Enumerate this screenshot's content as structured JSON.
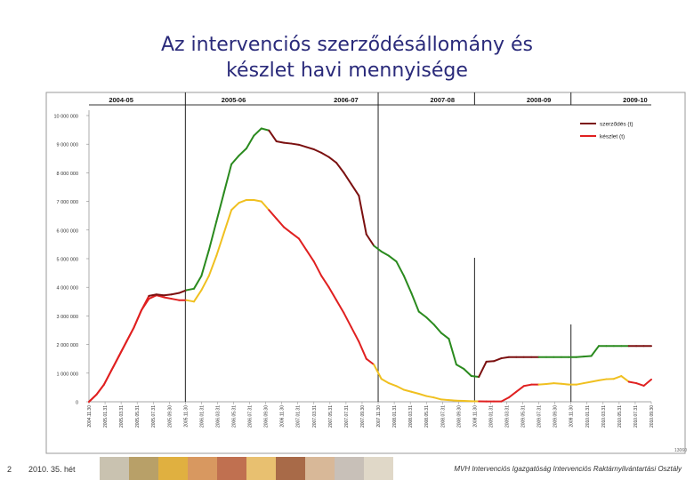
{
  "slide": {
    "title_line1": "Az intervenciós szerződésállomány és",
    "title_line2": "készlet havi mennyisége",
    "page_number": "2",
    "date_label": "2010. 35. hét",
    "organization": "MVH Intervenciós Igazgatóság Intervenciós Raktárnyilvántartási Osztály",
    "corner_mark": "13060"
  },
  "colors": {
    "contract_dark": "#7b1010",
    "contract_green": "#2a8a1e",
    "stock_red": "#e02020",
    "stock_yellow": "#f0c020",
    "title": "#2a2a7a"
  },
  "photo_strip_colors": [
    "#c9c2b0",
    "#b8a068",
    "#e0b040",
    "#d89860",
    "#c07050",
    "#e8c070",
    "#a86a48",
    "#d8b898",
    "#c8c0b8",
    "#e0d8c8"
  ],
  "chart_data": {
    "type": "line",
    "title": "",
    "xlabel": "",
    "ylabel": "",
    "ylim": [
      0,
      10000000
    ],
    "y_ticks": [
      0,
      1000000,
      2000000,
      3000000,
      4000000,
      5000000,
      6000000,
      7000000,
      8000000,
      9000000,
      10000000
    ],
    "y_tick_labels": [
      "0",
      "1 000 000",
      "2 000 000",
      "3 000 000",
      "4 000 000",
      "5 000 000",
      "6 000 000",
      "7 000 000",
      "8 000 000",
      "9 000 000",
      "10 000 000"
    ],
    "x_tick_labels": [
      "2004.11.30",
      "2005.01.31",
      "2005.03.31",
      "2005.05.31",
      "2005.07.31",
      "2005.09.30",
      "2005.11.30",
      "2006.01.31",
      "2006.03.31",
      "2006.05.31",
      "2006.07.31",
      "2006.09.30",
      "2006.11.30",
      "2007.01.31",
      "2007.03.31",
      "2007.05.31",
      "2007.07.31",
      "2007.09.30",
      "2007.11.30",
      "2008.01.31",
      "2008.03.31",
      "2008.05.31",
      "2008.07.31",
      "2008.09.30",
      "2008.11.30",
      "2009.01.31",
      "2009.03.31",
      "2009.05.31",
      "2009.07.31",
      "2009.09.30",
      "2009.11.30",
      "2010.01.31",
      "2010.03.31",
      "2010.05.31",
      "2010.07.31",
      "2010.09.30"
    ],
    "period_labels": [
      {
        "label": "2004-05",
        "month": 2
      },
      {
        "label": "2005-06",
        "month": 9
      },
      {
        "label": "2006-07",
        "month": 16
      },
      {
        "label": "2007-08",
        "month": 22
      },
      {
        "label": "2008-09",
        "month": 28
      },
      {
        "label": "2009-10",
        "month": 34
      }
    ],
    "period_dividers": [
      6,
      18,
      24,
      30
    ],
    "legend": [
      {
        "name": "szerződés (t)",
        "color": "#7b1010"
      },
      {
        "name": "készlet (t)",
        "color": "#e02020"
      }
    ],
    "legend_position": "top-right",
    "series": [
      {
        "name": "szerződés (t)",
        "values": [
          0,
          250000,
          600000,
          1100000,
          1600000,
          2100000,
          2600000,
          3200000,
          3700000,
          3750000,
          3720000,
          3750000,
          3800000,
          3900000,
          3950000,
          4400000,
          5300000,
          6300000,
          7300000,
          8300000,
          8600000,
          8850000,
          9300000,
          9550000,
          9480000,
          9100000,
          9050000,
          9020000,
          8980000,
          8900000,
          8820000,
          8700000,
          8550000,
          8350000,
          8000000,
          7600000,
          7200000,
          5850000,
          5450000,
          5250000,
          5100000,
          4900000,
          4400000,
          3800000,
          3150000,
          2950000,
          2700000,
          2400000,
          2200000,
          1300000,
          1150000,
          900000,
          870000,
          1400000,
          1420000,
          1520000,
          1560000,
          1560000,
          1560000,
          1560000,
          1560000,
          1560000,
          1560000,
          1560000,
          1560000,
          1560000,
          1580000,
          1600000,
          1950000,
          1950000,
          1950000,
          1950000,
          1950000,
          1950000,
          1950000,
          1950000
        ]
      },
      {
        "name": "készlet (t)",
        "values": [
          0,
          250000,
          600000,
          1100000,
          1600000,
          2100000,
          2600000,
          3200000,
          3600000,
          3720000,
          3650000,
          3600000,
          3550000,
          3550000,
          3500000,
          3900000,
          4400000,
          5100000,
          5900000,
          6700000,
          6950000,
          7050000,
          7050000,
          7000000,
          6700000,
          6400000,
          6100000,
          5900000,
          5700000,
          5300000,
          4900000,
          4400000,
          4000000,
          3550000,
          3100000,
          2600000,
          2100000,
          1500000,
          1300000,
          800000,
          650000,
          550000,
          420000,
          350000,
          280000,
          200000,
          150000,
          80000,
          60000,
          40000,
          30000,
          20000,
          15000,
          10000,
          10000,
          10000,
          150000,
          350000,
          550000,
          600000,
          600000,
          620000,
          650000,
          630000,
          600000,
          600000,
          650000,
          700000,
          750000,
          790000,
          800000,
          900000,
          700000,
          650000,
          560000,
          780000
        ]
      }
    ]
  }
}
